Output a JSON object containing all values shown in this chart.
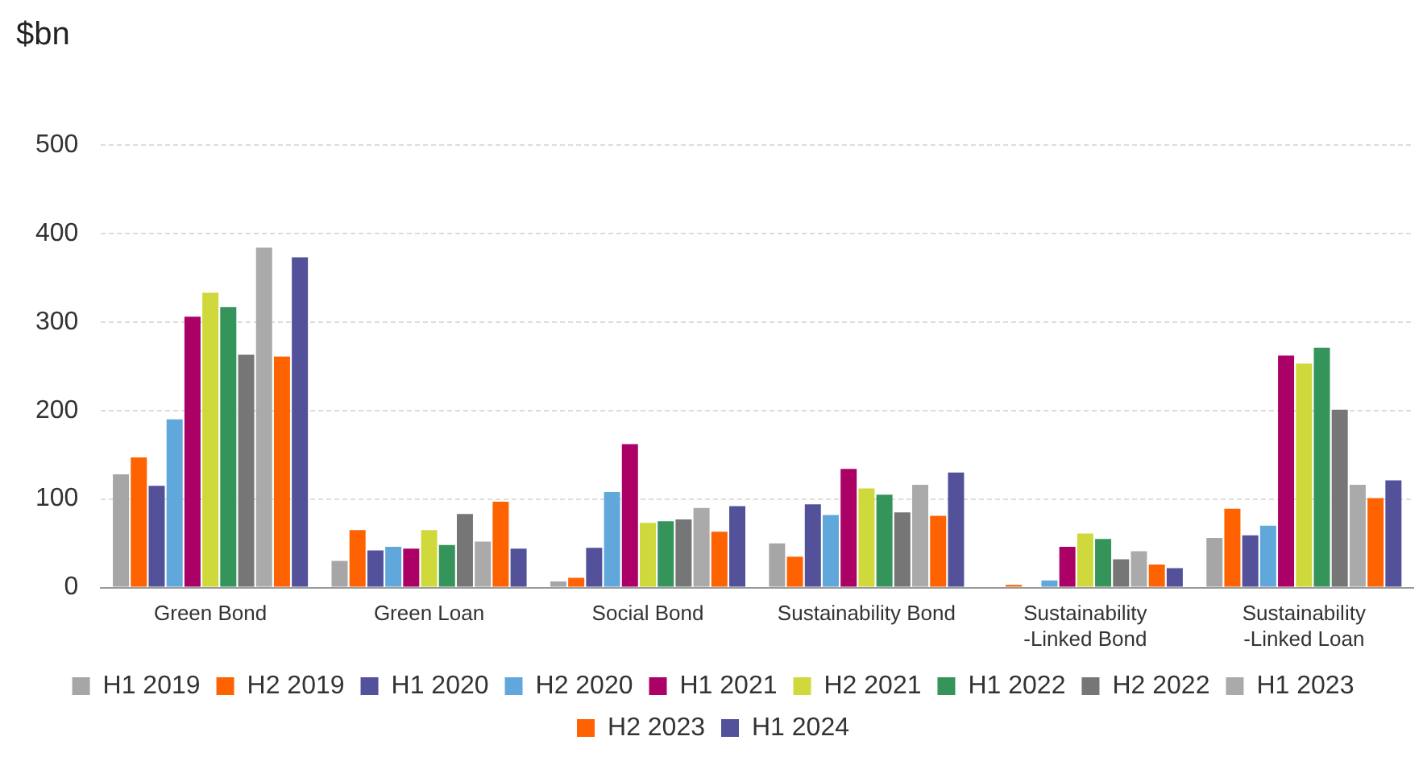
{
  "chart_data": {
    "type": "bar",
    "ylabel": "$bn",
    "categories": [
      "Green Bond",
      "Green Loan",
      "Social Bond",
      "Sustainability Bond",
      "Sustainability-Linked Bond",
      "Sustainability -Linked Loan"
    ],
    "series": [
      {
        "name": "H1 2019",
        "color": "#a6a6a6",
        "values": [
          128,
          30,
          7,
          50,
          null,
          56
        ]
      },
      {
        "name": "H2 2019",
        "color": "#ff6200",
        "values": [
          147,
          65,
          11,
          35,
          3,
          89
        ]
      },
      {
        "name": "H1 2020",
        "color": "#525199",
        "values": [
          115,
          42,
          45,
          94,
          null,
          59
        ]
      },
      {
        "name": "H2 2020",
        "color": "#60a8dc",
        "values": [
          190,
          46,
          108,
          82,
          8,
          70
        ]
      },
      {
        "name": "H1 2021",
        "color": "#ab0066",
        "values": [
          306,
          44,
          162,
          134,
          46,
          262
        ]
      },
      {
        "name": "H2 2021",
        "color": "#d0d93c",
        "values": [
          333,
          65,
          73,
          112,
          61,
          253
        ]
      },
      {
        "name": "H1 2022",
        "color": "#34945a",
        "values": [
          317,
          48,
          75,
          105,
          55,
          271
        ]
      },
      {
        "name": "H2 2022",
        "color": "#767676",
        "values": [
          263,
          83,
          77,
          85,
          32,
          201
        ]
      },
      {
        "name": "H1 2023",
        "color": "#aaaaaa",
        "values": [
          384,
          52,
          90,
          116,
          41,
          116
        ]
      },
      {
        "name": "H2 2023",
        "color": "#ff6200",
        "values": [
          261,
          97,
          63,
          81,
          26,
          101
        ]
      },
      {
        "name": "H1 2024",
        "color": "#525199",
        "values": [
          373,
          44,
          92,
          130,
          22,
          121
        ]
      }
    ],
    "ylim": [
      0,
      500
    ],
    "yticks": [
      0,
      100,
      200,
      300,
      400,
      500
    ],
    "grid": "y",
    "legend": "bottom"
  }
}
